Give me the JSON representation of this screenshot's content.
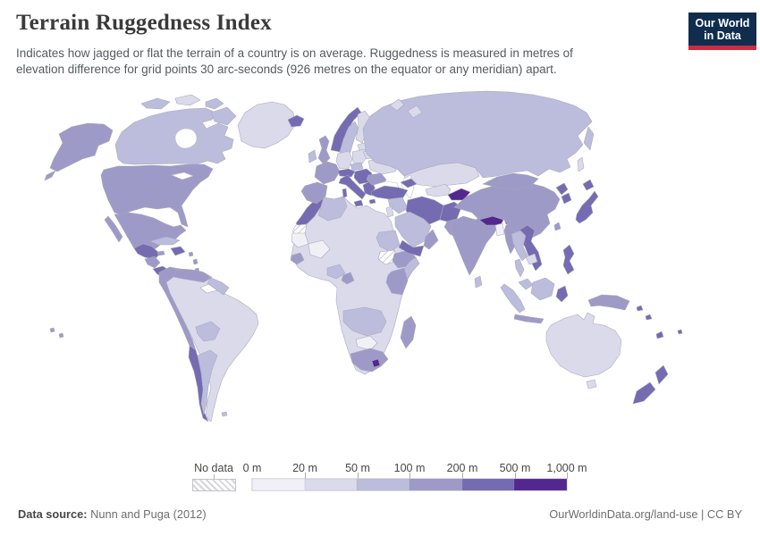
{
  "header": {
    "title": "Terrain Ruggedness Index",
    "subtitle_line1": "Indicates how jagged or flat the terrain of a country is on average. Ruggedness is measured in metres of",
    "subtitle_line2": "elevation difference for grid points 30 arc-seconds (926 metres on the equator or any meridian) apart.",
    "logo": {
      "line1": "Our World",
      "line2": "in Data",
      "bg_color": "#102d4e",
      "accent_color": "#cf2b3f"
    }
  },
  "legend": {
    "no_data_label": "No data",
    "tick_labels": [
      "0 m",
      "20 m",
      "50 m",
      "100 m",
      "200 m",
      "500 m",
      "1,000 m"
    ],
    "bin_colors": [
      "#f2f0f7",
      "#dadaeb",
      "#bcbddc",
      "#9e9ac8",
      "#756bb1",
      "#54278f"
    ]
  },
  "map": {
    "ocean_color": "#ffffff",
    "border_color": "#a7a7ba",
    "no_data_pattern": "diagonal-hatch"
  },
  "footer": {
    "source_label": "Data source:",
    "source_value": "Nunn and Puga (2012)",
    "credit": "OurWorldinData.org/land-use | CC BY"
  }
}
